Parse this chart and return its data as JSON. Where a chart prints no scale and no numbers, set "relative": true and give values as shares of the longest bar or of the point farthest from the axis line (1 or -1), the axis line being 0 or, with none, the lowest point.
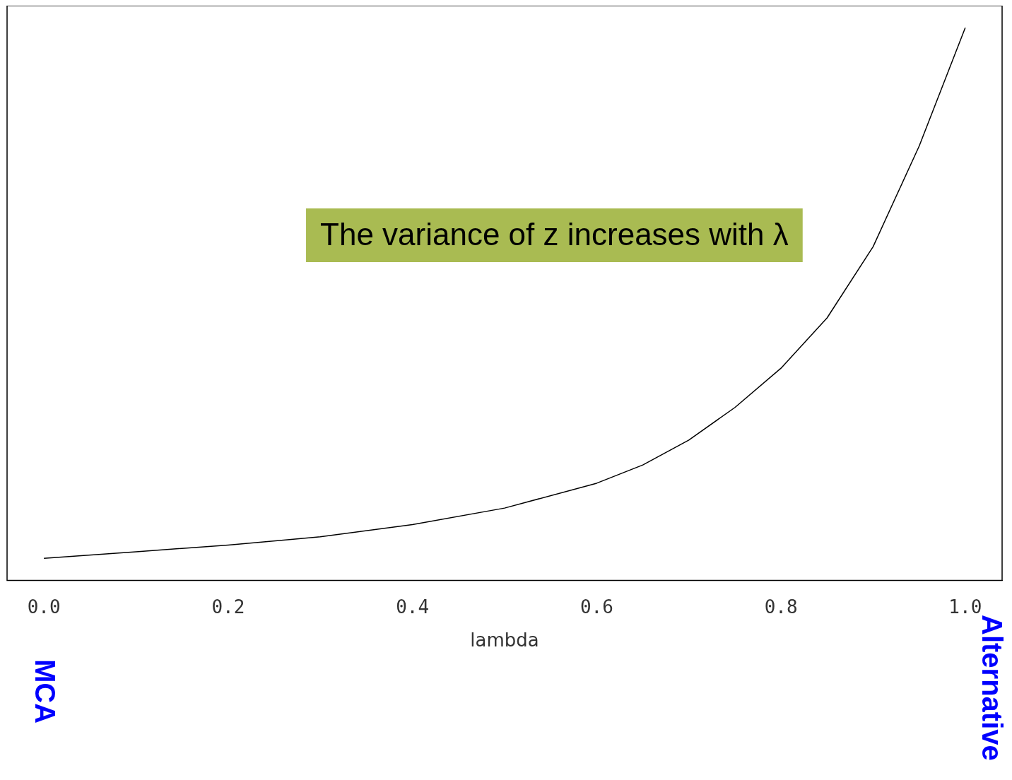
{
  "chart_data": {
    "type": "line",
    "relative": true,
    "xlabel": "lambda",
    "annotations": [
      "The variance of z increases with λ",
      "MCA",
      "Alternative"
    ],
    "x": [
      0,
      0.1,
      0.2,
      0.3,
      0.4,
      0.5,
      0.6,
      0.65,
      0.7,
      0.75,
      0.8,
      0.85,
      0.9,
      0.95,
      1.0
    ],
    "series": [
      {
        "color": "#000000",
        "values": [
          0.04,
          0.052,
          0.064,
          0.079,
          0.101,
          0.131,
          0.176,
          0.209,
          0.254,
          0.313,
          0.384,
          0.475,
          0.604,
          0.786,
          1
        ]
      }
    ],
    "xlim": [
      -0.04,
      1.04
    ],
    "xticks": [
      {
        "value": 0,
        "label": "0.0"
      },
      {
        "value": 0.2,
        "label": "0.2"
      },
      {
        "value": 0.4,
        "label": "0.4"
      },
      {
        "value": 0.6,
        "label": "0.6"
      },
      {
        "value": 0.8,
        "label": "0.8"
      },
      {
        "value": 1,
        "label": "1.0"
      }
    ],
    "grid": false,
    "legend": false,
    "marker": "none",
    "line_style": "solid"
  }
}
